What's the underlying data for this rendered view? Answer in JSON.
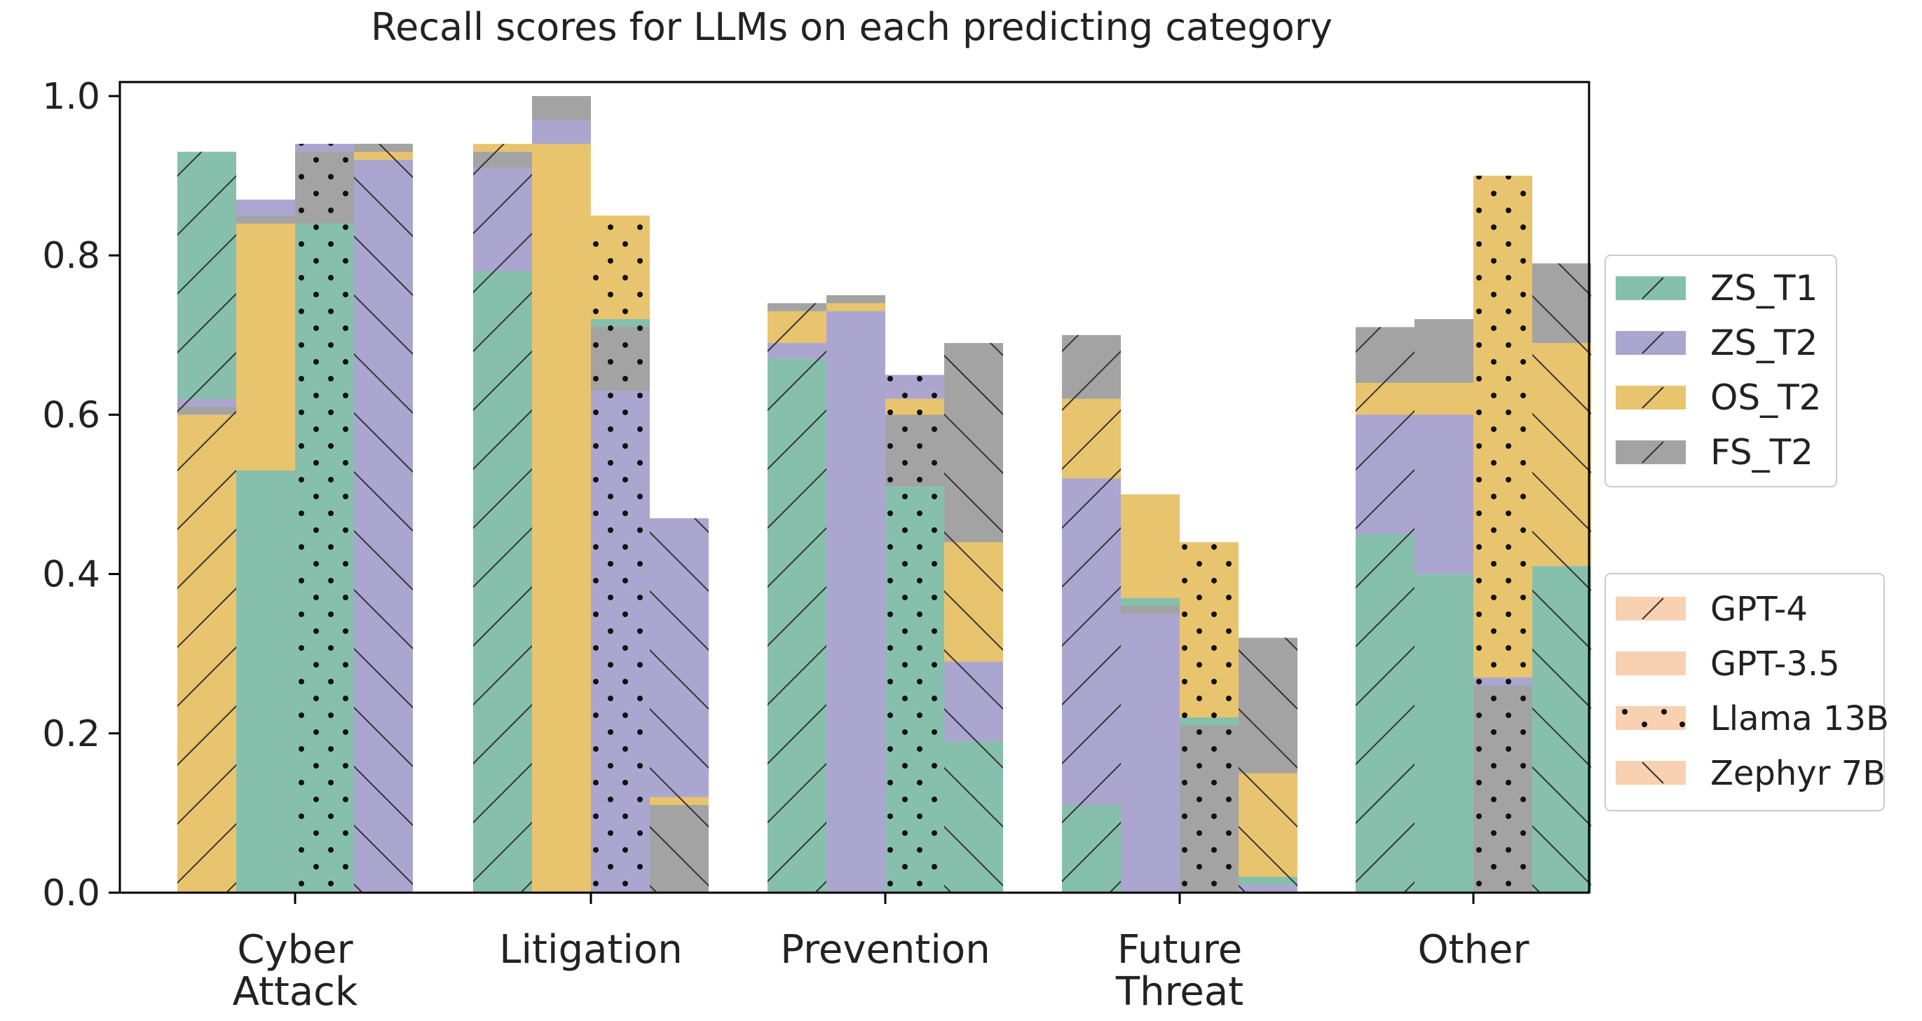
{
  "chart_data": {
    "type": "bar",
    "title": "Recall scores for LLMs on each predicting category",
    "categories": [
      "Cyber\nAttack",
      "Litigation",
      "Prevention",
      "Future\nThreat",
      "Other"
    ],
    "ylim": [
      0,
      1.0
    ],
    "yticks": [
      "0.0",
      "0.2",
      "0.4",
      "0.6",
      "0.8",
      "1.0"
    ],
    "xlabel": "",
    "ylabel": "",
    "legend_settings": {
      "title": "",
      "placement": "right",
      "entries": [
        {
          "name": "ZS_T1",
          "color": "#86c0ac"
        },
        {
          "name": "ZS_T2",
          "color": "#aba6d0"
        },
        {
          "name": "OS_T2",
          "color": "#e9c46f"
        },
        {
          "name": "FS_T2",
          "color": "#a3a3a3"
        }
      ]
    },
    "legend_models": {
      "placement": "right",
      "swatch_color": "#f7d1b1",
      "entries": [
        {
          "name": "GPT-4",
          "hatch": "slash"
        },
        {
          "name": "GPT-3.5",
          "hatch": "none"
        },
        {
          "name": "Llama 13B",
          "hatch": "dots"
        },
        {
          "name": "Zephyr 7B",
          "hatch": "backslash"
        }
      ]
    },
    "models": [
      {
        "name": "GPT-4",
        "hatch": "slash"
      },
      {
        "name": "GPT-3.5",
        "hatch": "none"
      },
      {
        "name": "Llama 13B",
        "hatch": "dots"
      },
      {
        "name": "Zephyr 7B",
        "hatch": "backslash"
      }
    ],
    "series_order": [
      "ZS_T1",
      "ZS_T2",
      "OS_T2",
      "FS_T2"
    ],
    "values": {
      "ZS_T1": [
        [
          0.93,
          0.53,
          0.84,
          0.94
        ],
        [
          0.78,
          0.94,
          0.72,
          0.12
        ],
        [
          0.67,
          0.75,
          0.51,
          0.19
        ],
        [
          0.11,
          0.37,
          0.22,
          0.02
        ],
        [
          0.45,
          0.4,
          0.27,
          0.41
        ]
      ],
      "ZS_T2": [
        [
          0.62,
          0.87,
          0.94,
          0.92
        ],
        [
          0.91,
          0.97,
          0.63,
          0.47
        ],
        [
          0.69,
          0.73,
          0.65,
          0.29
        ],
        [
          0.52,
          0.35,
          0.21,
          0.01
        ],
        [
          0.6,
          0.6,
          0.27,
          0.69
        ]
      ],
      "OS_T2": [
        [
          0.6,
          0.84,
          0.93,
          0.93
        ],
        [
          0.94,
          0.94,
          0.85,
          0.12
        ],
        [
          0.73,
          0.74,
          0.62,
          0.44
        ],
        [
          0.62,
          0.5,
          0.44,
          0.15
        ],
        [
          0.64,
          0.64,
          0.9,
          0.69
        ]
      ],
      "FS_T2": [
        [
          0.61,
          0.85,
          0.93,
          0.94
        ],
        [
          0.93,
          1.0,
          0.71,
          0.11
        ],
        [
          0.74,
          0.75,
          0.6,
          0.69
        ],
        [
          0.7,
          0.36,
          0.21,
          0.32
        ],
        [
          0.71,
          0.72,
          0.26,
          0.79
        ]
      ]
    }
  }
}
